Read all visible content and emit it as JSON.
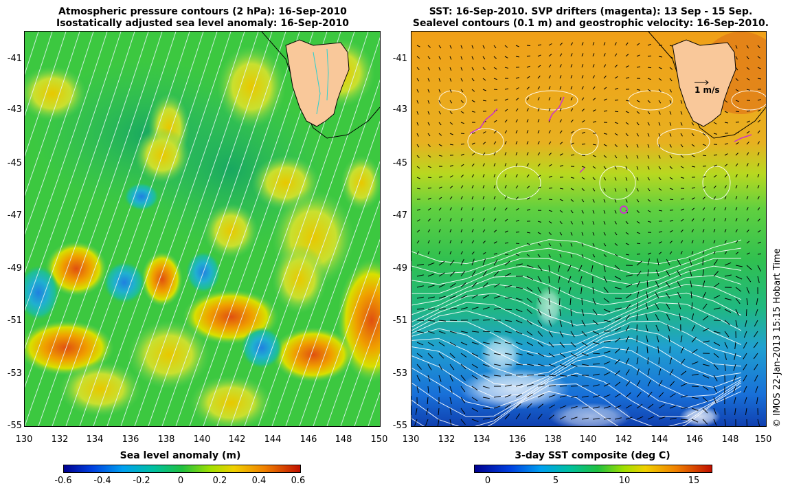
{
  "left_panel": {
    "title_line1": "Atmospheric pressure contours (2 hPa): 16-Sep-2010",
    "title_line2": "Isostatically adjusted sea level anomaly: 16-Sep-2010",
    "y_ticks": [
      "-41",
      "-43",
      "-45",
      "-47",
      "-49",
      "-51",
      "-53",
      "-55"
    ],
    "x_ticks": [
      "130",
      "132",
      "134",
      "136",
      "138",
      "140",
      "142",
      "144",
      "146",
      "148",
      "150"
    ],
    "colorbar_label": "Sea level anomaly (m)",
    "colorbar_ticks": [
      "-0.6",
      "-0.4",
      "-0.2",
      "0",
      "0.2",
      "0.4",
      "0.6"
    ]
  },
  "right_panel": {
    "title_line1": "SST: 16-Sep-2010. SVP drifters (magenta): 13 Sep - 15 Sep.",
    "title_line2": "Sealevel contours (0.1 m) and geostrophic velocity: 16-Sep-2010.",
    "y_ticks": [
      "-41",
      "-43",
      "-45",
      "-47",
      "-49",
      "-51",
      "-53",
      "-55"
    ],
    "x_ticks": [
      "130",
      "132",
      "134",
      "136",
      "138",
      "140",
      "142",
      "144",
      "146",
      "148",
      "150"
    ],
    "colorbar_label": "3-day SST composite (deg C)",
    "colorbar_ticks": [
      "0",
      "5",
      "10",
      "15"
    ],
    "velocity_scale_label": "1 m/s"
  },
  "credit": "© IMOS 22-Jan-2013 15:15 Hobart Time",
  "colors": {
    "land": "#f9c89a",
    "drifter": "#cc33cc",
    "sla_green": "#33cc33",
    "sst_warm": "#f0a020",
    "sst_cold": "#1a70d0"
  }
}
